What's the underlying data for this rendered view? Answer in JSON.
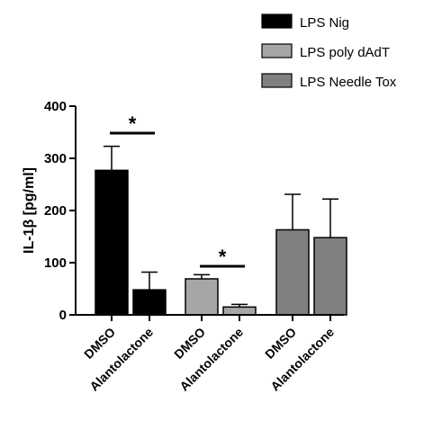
{
  "chart_data": {
    "type": "bar",
    "ylabel": "IL-1β [pg/ml]",
    "ylim": [
      0,
      400
    ],
    "yticks": [
      0,
      100,
      200,
      300,
      400
    ],
    "legend_position": "top-right",
    "series": [
      {
        "name": "LPS Nig",
        "color": "#000000",
        "categories": [
          "DMSO",
          "Alantolactone"
        ],
        "values": [
          277,
          48
        ],
        "errors": [
          46,
          34
        ]
      },
      {
        "name": "LPS poly dAdT",
        "color": "#a6a6a6",
        "categories": [
          "DMSO",
          "Alantolactone"
        ],
        "values": [
          69,
          15
        ],
        "errors": [
          8,
          5
        ]
      },
      {
        "name": "LPS Needle Tox",
        "color": "#808080",
        "categories": [
          "DMSO",
          "Alantolactone"
        ],
        "values": [
          163,
          148
        ],
        "errors": [
          68,
          74
        ]
      }
    ],
    "annotations": [
      {
        "text": "*",
        "group": 0
      },
      {
        "text": "*",
        "group": 1
      }
    ]
  }
}
